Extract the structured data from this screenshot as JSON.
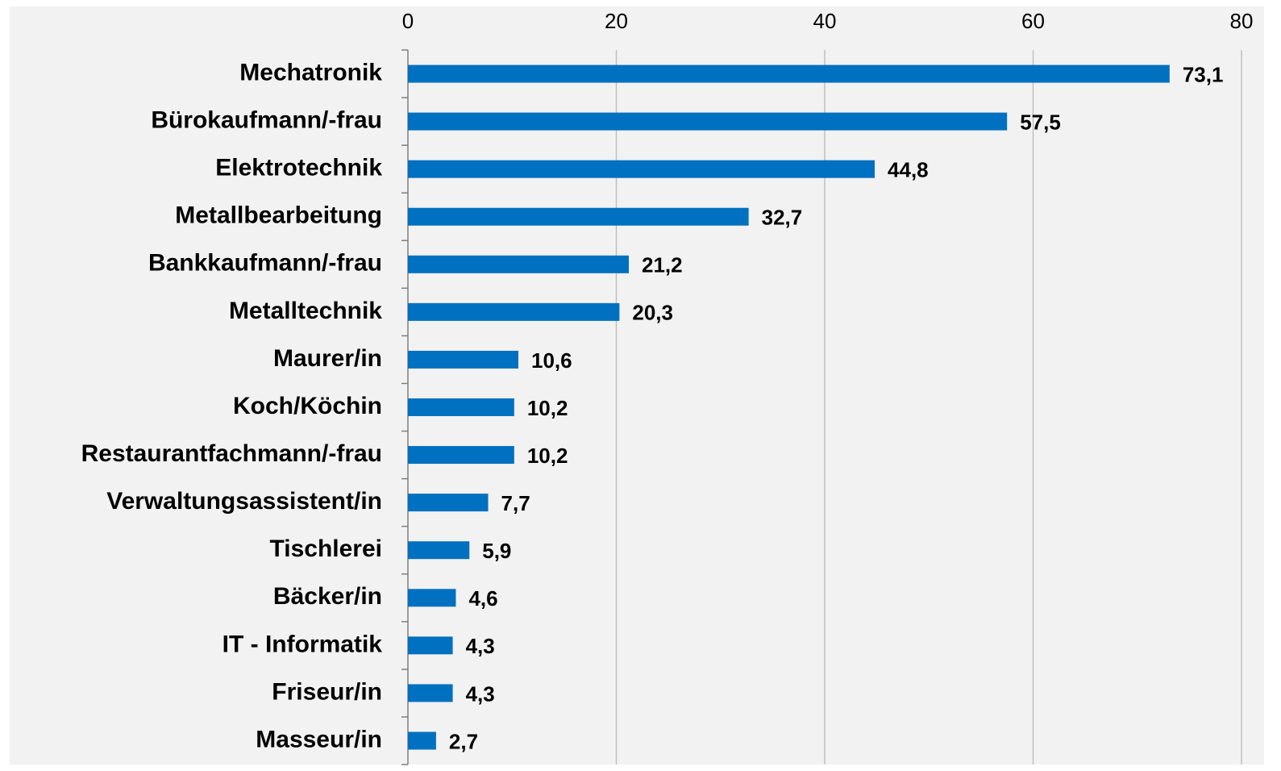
{
  "chart_data": {
    "type": "bar",
    "orientation": "horizontal",
    "categories": [
      "Mechatronik",
      "Bürokaufmann/-frau",
      "Elektrotechnik",
      "Metallbearbeitung",
      "Bankkaufmann/-frau",
      "Metalltechnik",
      "Maurer/in",
      "Koch/Köchin",
      "Restaurantfachmann/-frau",
      "Verwaltungsassistent/in",
      "Tischlerei",
      "Bäcker/in",
      "IT - Informatik",
      "Friseur/in",
      "Masseur/in"
    ],
    "values": [
      73.1,
      57.5,
      44.8,
      32.7,
      21.2,
      20.3,
      10.6,
      10.2,
      10.2,
      7.7,
      5.9,
      4.6,
      4.3,
      4.3,
      2.7
    ],
    "value_labels": [
      "73,1",
      "57,5",
      "44,8",
      "32,7",
      "21,2",
      "20,3",
      "10,6",
      "10,2",
      "10,2",
      "7,7",
      "5,9",
      "4,6",
      "4,3",
      "4,3",
      "2,7"
    ],
    "color": "#0070c0",
    "xlim": [
      0,
      80
    ],
    "xticks": [
      0,
      20,
      40,
      60,
      80
    ],
    "grid": true
  }
}
